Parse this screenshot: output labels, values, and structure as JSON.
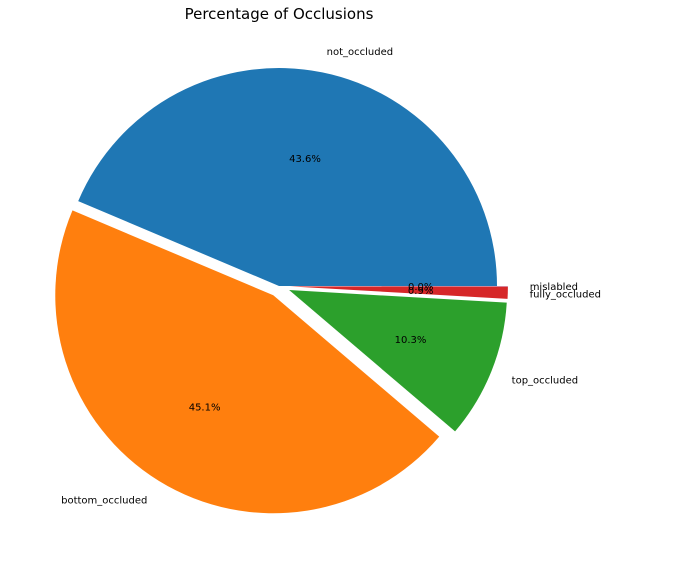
{
  "chart_data": {
    "type": "pie",
    "title": "Percentage of Occlusions",
    "start_angle_deg": 0,
    "direction": "counterclockwise",
    "slices": [
      {
        "label": "not_occluded",
        "value": 43.6,
        "pct_label": "43.6%",
        "color": "#1f77b4",
        "exploded": false
      },
      {
        "label": "bottom_occluded",
        "value": 45.1,
        "pct_label": "45.1%",
        "color": "#ff7f0e",
        "exploded": true
      },
      {
        "label": "top_occluded",
        "value": 10.3,
        "pct_label": "10.3%",
        "color": "#2ca02c",
        "exploded": true
      },
      {
        "label": "fully_occluded",
        "value": 0.9,
        "pct_label": "0.9%",
        "color": "#d62728",
        "exploded": true
      },
      {
        "label": "mislabled",
        "value": 0.02,
        "pct_label": "0.0%",
        "color": "#9467bd",
        "exploded": true
      }
    ]
  }
}
